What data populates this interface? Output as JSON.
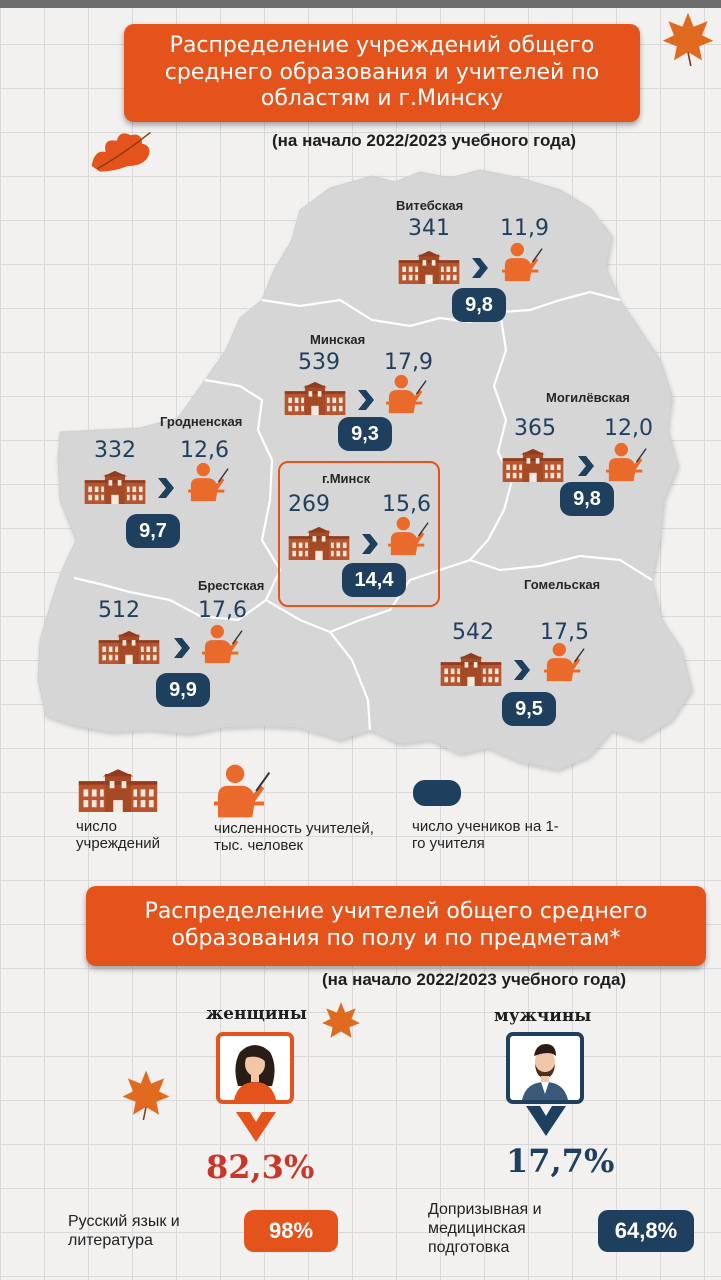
{
  "header": {
    "title": "Распределение учреждений общего среднего образования и учителей по областям и г.Минску",
    "subtitle": "(на начало 2022/2023 учебного года)"
  },
  "regions": [
    {
      "name": "Витебская",
      "institutions": "341",
      "teachers": "11,9",
      "students_per_teacher": "9,8"
    },
    {
      "name": "Минская",
      "institutions": "539",
      "teachers": "17,9",
      "students_per_teacher": "9,3"
    },
    {
      "name": "Гродненская",
      "institutions": "332",
      "teachers": "12,6",
      "students_per_teacher": "9,7"
    },
    {
      "name": "Могилёвская",
      "institutions": "365",
      "teachers": "12,0",
      "students_per_teacher": "9,8"
    },
    {
      "name": "г.Минск",
      "institutions": "269",
      "teachers": "15,6",
      "students_per_teacher": "14,4"
    },
    {
      "name": "Брестская",
      "institutions": "512",
      "teachers": "17,6",
      "students_per_teacher": "9,9"
    },
    {
      "name": "Гомельская",
      "institutions": "542",
      "teachers": "17,5",
      "students_per_teacher": "9,5"
    }
  ],
  "legend": {
    "institutions": "число учреждений",
    "teachers": "численность учителей, тыс. человек",
    "students": "число учеников на 1-го учителя"
  },
  "section2": {
    "title": "Распределение учителей общего среднего образования по полу и по предметам*",
    "subtitle": "(на начало 2022/2023 учебного года)",
    "women": {
      "label": "женщины",
      "percent": "82,3%",
      "subject": "Русский язык и литература",
      "subject_percent": "98%"
    },
    "men": {
      "label": "мужчины",
      "percent": "17,7%",
      "subject": "Допризывная и медицинская подготовка",
      "subject_percent": "64,8%"
    }
  },
  "colors": {
    "accent": "#e5531c",
    "navy": "#1f3f5e",
    "map": "#d6d6d6",
    "border": "#ffffff"
  },
  "icons": [
    "school-icon",
    "teacher-icon",
    "arrow-icon",
    "woman-avatar-icon",
    "man-avatar-icon",
    "leaf-icon"
  ]
}
